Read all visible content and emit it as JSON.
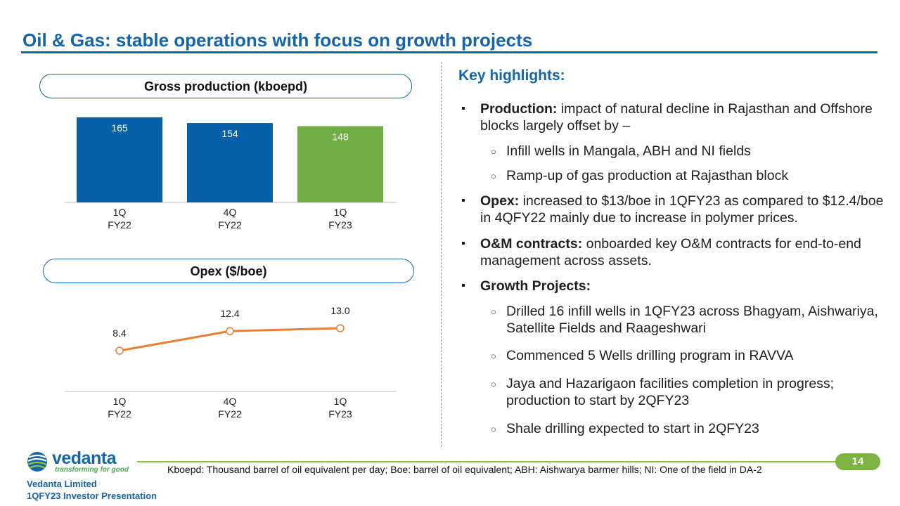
{
  "title": "Oil & Gas: stable operations with focus on growth projects",
  "colors": {
    "brand": "#1565a8",
    "bar_blue": "#0860a8",
    "bar_green": "#71ad47",
    "line_orange": "#ed7d31",
    "accent_green": "#7cb342"
  },
  "chart_data": [
    {
      "type": "bar",
      "title": "Gross production (kboepd)",
      "categories": [
        "1Q FY22",
        "4Q FY22",
        "1Q FY23"
      ],
      "category_lines": [
        [
          "1Q",
          "FY22"
        ],
        [
          "4Q",
          "FY22"
        ],
        [
          "1Q",
          "FY23"
        ]
      ],
      "values": [
        165,
        154,
        148
      ],
      "labels": [
        "165",
        "154",
        "148"
      ],
      "highlight_last": true,
      "ylim": [
        0,
        165
      ]
    },
    {
      "type": "line",
      "title": "Opex ($/boe)",
      "categories": [
        "1Q FY22",
        "4Q FY22",
        "1Q FY23"
      ],
      "category_lines": [
        [
          "1Q",
          "FY22"
        ],
        [
          "4Q",
          "FY22"
        ],
        [
          "1Q",
          "FY23"
        ]
      ],
      "values": [
        8.4,
        12.4,
        13.0
      ],
      "labels": [
        "8.4",
        "12.4",
        "13.0"
      ],
      "ylim": [
        0,
        16
      ]
    }
  ],
  "highlights": {
    "title": "Key highlights:",
    "production": {
      "head": "Production:",
      "text": " impact of natural decline in Rajasthan and Offshore blocks largely offset by –"
    },
    "production_sub": [
      "Infill wells in Mangala, ABH and NI fields",
      "Ramp-up of gas production at Rajasthan block"
    ],
    "opex": {
      "head": "Opex:",
      "text": " increased to $13/boe in 1QFY23 as compared to $12.4/boe in 4QFY22 mainly due to increase in polymer prices."
    },
    "om": {
      "head": "O&M contracts:",
      "text": " onboarded key O&M contracts for end-to-end management across assets."
    },
    "growth": {
      "head": "Growth Projects:"
    },
    "growth_sub": [
      "Drilled 16 infill wells in 1QFY23 across Bhagyam, Aishwariya, Satellite Fields and Raageshwari",
      "Commenced 5 Wells drilling program in RAVVA",
      "Jaya and Hazarigaon facilities completion in progress; production to start by 2QFY23",
      "Shale drilling expected to start in 2QFY23"
    ]
  },
  "footer": {
    "footnote": "Kboepd: Thousand barrel of oil equivalent per day; Boe: barrel of oil equivalent; ABH: Aishwarya barmer hills; NI: One of the field in DA-2",
    "page": "14",
    "logo_text": "vedanta",
    "logo_tagline": "transforming for good",
    "company": "Vedanta Limited",
    "presentation": "1QFY23 Investor Presentation"
  }
}
